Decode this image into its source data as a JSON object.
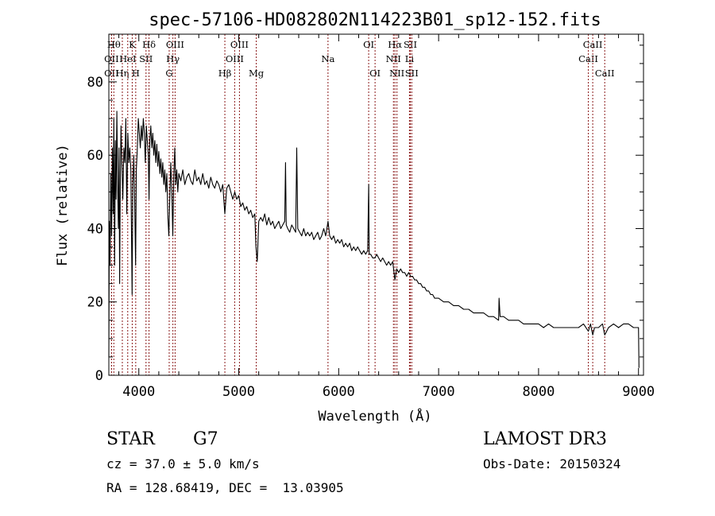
{
  "chart_data": {
    "type": "line",
    "title": "spec-57106-HD082802N114223B01_sp12-152.fits",
    "xlabel": "Wavelength (Å)",
    "ylabel": "Flux (relative)",
    "xlim": [
      3700,
      9050
    ],
    "ylim": [
      0,
      93
    ],
    "x_ticks": [
      4000,
      5000,
      6000,
      7000,
      8000,
      9000
    ],
    "y_ticks": [
      0,
      20,
      40,
      60,
      80
    ],
    "series": [
      {
        "name": "flux",
        "points": [
          [
            3700,
            5
          ],
          [
            3705,
            42
          ],
          [
            3712,
            30
          ],
          [
            3720,
            55
          ],
          [
            3728,
            38
          ],
          [
            3736,
            62
          ],
          [
            3744,
            44
          ],
          [
            3750,
            70
          ],
          [
            3758,
            30
          ],
          [
            3765,
            64
          ],
          [
            3772,
            48
          ],
          [
            3780,
            72
          ],
          [
            3788,
            52
          ],
          [
            3795,
            40
          ],
          [
            3802,
            62
          ],
          [
            3808,
            25
          ],
          [
            3815,
            55
          ],
          [
            3822,
            68
          ],
          [
            3830,
            58
          ],
          [
            3840,
            48
          ],
          [
            3850,
            62
          ],
          [
            3860,
            58
          ],
          [
            3870,
            70
          ],
          [
            3880,
            44
          ],
          [
            3890,
            66
          ],
          [
            3900,
            58
          ],
          [
            3910,
            62
          ],
          [
            3920,
            56
          ],
          [
            3933,
            22
          ],
          [
            3940,
            52
          ],
          [
            3950,
            60
          ],
          [
            3958,
            48
          ],
          [
            3968,
            30
          ],
          [
            3975,
            56
          ],
          [
            3985,
            62
          ],
          [
            3995,
            70
          ],
          [
            4005,
            66
          ],
          [
            4015,
            62
          ],
          [
            4025,
            68
          ],
          [
            4035,
            64
          ],
          [
            4045,
            70
          ],
          [
            4055,
            66
          ],
          [
            4065,
            58
          ],
          [
            4075,
            68
          ],
          [
            4085,
            64
          ],
          [
            4095,
            60
          ],
          [
            4102,
            48
          ],
          [
            4110,
            64
          ],
          [
            4120,
            68
          ],
          [
            4130,
            62
          ],
          [
            4140,
            66
          ],
          [
            4150,
            60
          ],
          [
            4160,
            64
          ],
          [
            4170,
            58
          ],
          [
            4180,
            63
          ],
          [
            4190,
            57
          ],
          [
            4200,
            61
          ],
          [
            4210,
            55
          ],
          [
            4220,
            59
          ],
          [
            4230,
            54
          ],
          [
            4240,
            58
          ],
          [
            4250,
            52
          ],
          [
            4260,
            56
          ],
          [
            4270,
            50
          ],
          [
            4280,
            55
          ],
          [
            4290,
            44
          ],
          [
            4300,
            38
          ],
          [
            4310,
            48
          ],
          [
            4320,
            58
          ],
          [
            4330,
            50
          ],
          [
            4340,
            38
          ],
          [
            4350,
            54
          ],
          [
            4360,
            62
          ],
          [
            4370,
            52
          ],
          [
            4380,
            56
          ],
          [
            4390,
            50
          ],
          [
            4400,
            55
          ],
          [
            4420,
            53
          ],
          [
            4440,
            56
          ],
          [
            4460,
            52
          ],
          [
            4480,
            54
          ],
          [
            4500,
            55
          ],
          [
            4520,
            53
          ],
          [
            4540,
            52
          ],
          [
            4560,
            56
          ],
          [
            4580,
            53
          ],
          [
            4600,
            54
          ],
          [
            4620,
            52
          ],
          [
            4640,
            55
          ],
          [
            4660,
            52
          ],
          [
            4680,
            53
          ],
          [
            4700,
            51
          ],
          [
            4720,
            54
          ],
          [
            4740,
            52
          ],
          [
            4760,
            51
          ],
          [
            4780,
            53
          ],
          [
            4800,
            52
          ],
          [
            4820,
            50
          ],
          [
            4840,
            52
          ],
          [
            4861,
            44
          ],
          [
            4880,
            51
          ],
          [
            4900,
            52
          ],
          [
            4920,
            50
          ],
          [
            4940,
            48
          ],
          [
            4960,
            50
          ],
          [
            4980,
            48
          ],
          [
            5000,
            49
          ],
          [
            5020,
            46
          ],
          [
            5040,
            47
          ],
          [
            5060,
            45
          ],
          [
            5080,
            46
          ],
          [
            5100,
            44
          ],
          [
            5120,
            45
          ],
          [
            5140,
            43
          ],
          [
            5160,
            44
          ],
          [
            5172,
            35
          ],
          [
            5185,
            31
          ],
          [
            5200,
            42
          ],
          [
            5220,
            43
          ],
          [
            5240,
            42
          ],
          [
            5260,
            44
          ],
          [
            5280,
            41
          ],
          [
            5300,
            43
          ],
          [
            5320,
            41
          ],
          [
            5340,
            42
          ],
          [
            5360,
            40
          ],
          [
            5380,
            41
          ],
          [
            5400,
            42
          ],
          [
            5420,
            40
          ],
          [
            5440,
            41
          ],
          [
            5460,
            42
          ],
          [
            5468,
            58
          ],
          [
            5475,
            41
          ],
          [
            5490,
            40
          ],
          [
            5510,
            39
          ],
          [
            5530,
            41
          ],
          [
            5550,
            40
          ],
          [
            5570,
            39
          ],
          [
            5580,
            62
          ],
          [
            5590,
            40
          ],
          [
            5610,
            39
          ],
          [
            5630,
            38
          ],
          [
            5650,
            40
          ],
          [
            5670,
            38
          ],
          [
            5690,
            39
          ],
          [
            5710,
            38
          ],
          [
            5730,
            39
          ],
          [
            5750,
            37
          ],
          [
            5770,
            38
          ],
          [
            5790,
            39
          ],
          [
            5810,
            37
          ],
          [
            5830,
            38
          ],
          [
            5850,
            40
          ],
          [
            5870,
            38
          ],
          [
            5893,
            42
          ],
          [
            5910,
            38
          ],
          [
            5930,
            37
          ],
          [
            5950,
            38
          ],
          [
            5970,
            36
          ],
          [
            5990,
            37
          ],
          [
            6010,
            36
          ],
          [
            6030,
            37
          ],
          [
            6050,
            35
          ],
          [
            6070,
            36
          ],
          [
            6090,
            35
          ],
          [
            6110,
            36
          ],
          [
            6130,
            34
          ],
          [
            6150,
            35
          ],
          [
            6170,
            34
          ],
          [
            6190,
            35
          ],
          [
            6210,
            34
          ],
          [
            6230,
            33
          ],
          [
            6250,
            34
          ],
          [
            6270,
            33
          ],
          [
            6290,
            34
          ],
          [
            6300,
            52
          ],
          [
            6305,
            33
          ],
          [
            6320,
            33
          ],
          [
            6340,
            32
          ],
          [
            6364,
            32
          ],
          [
            6380,
            33
          ],
          [
            6400,
            32
          ],
          [
            6420,
            31
          ],
          [
            6440,
            32
          ],
          [
            6460,
            31
          ],
          [
            6480,
            30
          ],
          [
            6500,
            31
          ],
          [
            6520,
            30
          ],
          [
            6540,
            31
          ],
          [
            6563,
            26
          ],
          [
            6580,
            29
          ],
          [
            6600,
            28
          ],
          [
            6620,
            29
          ],
          [
            6640,
            28
          ],
          [
            6660,
            28
          ],
          [
            6680,
            27
          ],
          [
            6700,
            28
          ],
          [
            6720,
            27
          ],
          [
            6740,
            27
          ],
          [
            6760,
            26
          ],
          [
            6780,
            26
          ],
          [
            6800,
            25
          ],
          [
            6820,
            25
          ],
          [
            6840,
            24
          ],
          [
            6860,
            24
          ],
          [
            6880,
            23
          ],
          [
            6900,
            23
          ],
          [
            6920,
            22
          ],
          [
            6940,
            22
          ],
          [
            6960,
            21
          ],
          [
            6980,
            21
          ],
          [
            7000,
            21
          ],
          [
            7050,
            20
          ],
          [
            7100,
            20
          ],
          [
            7150,
            19
          ],
          [
            7200,
            19
          ],
          [
            7250,
            18
          ],
          [
            7300,
            18
          ],
          [
            7350,
            17
          ],
          [
            7400,
            17
          ],
          [
            7450,
            17
          ],
          [
            7500,
            16
          ],
          [
            7550,
            16
          ],
          [
            7600,
            15
          ],
          [
            7605,
            21
          ],
          [
            7615,
            16
          ],
          [
            7650,
            16
          ],
          [
            7700,
            15
          ],
          [
            7750,
            15
          ],
          [
            7800,
            15
          ],
          [
            7850,
            14
          ],
          [
            7900,
            14
          ],
          [
            7950,
            14
          ],
          [
            8000,
            14
          ],
          [
            8050,
            13
          ],
          [
            8100,
            14
          ],
          [
            8150,
            13
          ],
          [
            8200,
            13
          ],
          [
            8250,
            13
          ],
          [
            8300,
            13
          ],
          [
            8350,
            13
          ],
          [
            8400,
            13
          ],
          [
            8450,
            14
          ],
          [
            8498,
            12
          ],
          [
            8520,
            14
          ],
          [
            8542,
            11
          ],
          [
            8560,
            13
          ],
          [
            8600,
            13
          ],
          [
            8640,
            14
          ],
          [
            8662,
            11
          ],
          [
            8700,
            13
          ],
          [
            8750,
            14
          ],
          [
            8800,
            13
          ],
          [
            8850,
            14
          ],
          [
            8900,
            14
          ],
          [
            8950,
            13
          ],
          [
            9000,
            13
          ],
          [
            9005,
            2
          ]
        ]
      }
    ],
    "spectral_lines": [
      {
        "label": "OII",
        "wavelength": 3727,
        "row": 2
      },
      {
        "label": "Hθ",
        "wavelength": 3750,
        "row": 0
      },
      {
        "label": "OII",
        "wavelength": 3727,
        "row": 1
      },
      {
        "label": "Hη",
        "wavelength": 3835,
        "row": 2
      },
      {
        "label": "HeI",
        "wavelength": 3889,
        "row": 1
      },
      {
        "label": "K",
        "wavelength": 3934,
        "row": 0
      },
      {
        "label": "H",
        "wavelength": 3969,
        "row": 2
      },
      {
        "label": "SII",
        "wavelength": 4072,
        "row": 1
      },
      {
        "label": "Hδ",
        "wavelength": 4102,
        "row": 0
      },
      {
        "label": "G",
        "wavelength": 4304,
        "row": 2
      },
      {
        "label": "Hγ",
        "wavelength": 4341,
        "row": 1
      },
      {
        "label": "OIII",
        "wavelength": 4363,
        "row": 0
      },
      {
        "label": "Hβ",
        "wavelength": 4861,
        "row": 2
      },
      {
        "label": "OIII",
        "wavelength": 4959,
        "row": 1
      },
      {
        "label": "OIII",
        "wavelength": 5007,
        "row": 0
      },
      {
        "label": "Mg",
        "wavelength": 5175,
        "row": 2
      },
      {
        "label": "Na",
        "wavelength": 5893,
        "row": 1
      },
      {
        "label": "OI",
        "wavelength": 6300,
        "row": 0
      },
      {
        "label": "OI",
        "wavelength": 6364,
        "row": 2
      },
      {
        "label": "NII",
        "wavelength": 6548,
        "row": 1
      },
      {
        "label": "Hα",
        "wavelength": 6563,
        "row": 0
      },
      {
        "label": "NII",
        "wavelength": 6583,
        "row": 2
      },
      {
        "label": "SII",
        "wavelength": 6717,
        "row": 0
      },
      {
        "label": "Li",
        "wavelength": 6708,
        "row": 1
      },
      {
        "label": "SII",
        "wavelength": 6731,
        "row": 2
      },
      {
        "label": "CaII",
        "wavelength": 8498,
        "row": 1
      },
      {
        "label": "CaII",
        "wavelength": 8542,
        "row": 0
      },
      {
        "label": "CaII",
        "wavelength": 8662,
        "row": 2
      }
    ]
  },
  "info": {
    "class_label": "STAR",
    "subclass": "G7",
    "survey": "LAMOST DR3",
    "cz": "cz = 37.0 ± 5.0 km/s",
    "obs_date": "Obs-Date: 20150324",
    "coords": "RA = 128.68419, DEC =  13.03905"
  },
  "colors": {
    "axis": "#000000",
    "spectrum": "#000000",
    "line_marker": "#8b1a1a"
  }
}
